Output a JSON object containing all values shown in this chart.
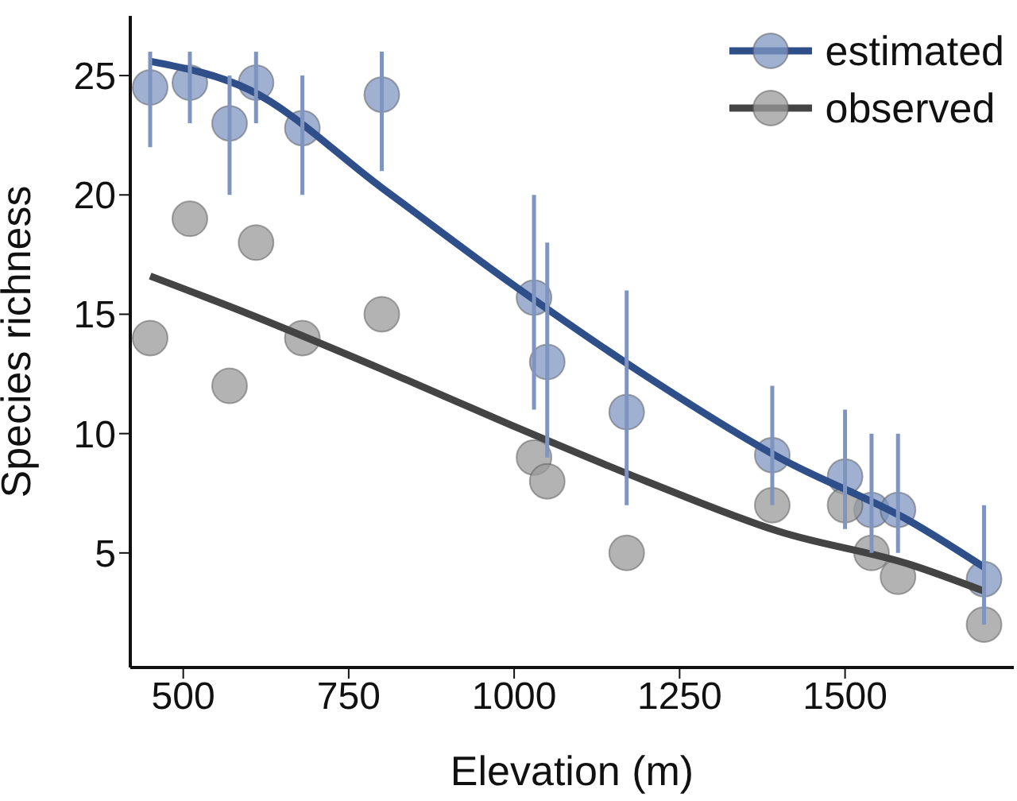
{
  "chart_data": {
    "type": "scatter",
    "xlabel": "Elevation (m)",
    "ylabel": "Species richness",
    "xlim": [
      420,
      1755
    ],
    "xticks": [
      500,
      750,
      1000,
      1250,
      1500
    ],
    "ylim": [
      0.2,
      27.5
    ],
    "yticks": [
      5,
      10,
      15,
      20,
      25
    ],
    "grid": false,
    "legend": "top right",
    "series": [
      {
        "name": "estimated",
        "marker": "circle",
        "color": "#7f95c0",
        "x": [
          450,
          510,
          570,
          610,
          680,
          800,
          1030,
          1050,
          1170,
          1390,
          1500,
          1540,
          1580,
          1710
        ],
        "values": [
          24.5,
          24.7,
          23,
          24.7,
          22.8,
          24.2,
          15.7,
          13,
          10.9,
          9.1,
          8.2,
          6.8,
          6.8,
          3.9
        ],
        "errors": [
          [
            22,
            26
          ],
          [
            23,
            26
          ],
          [
            20,
            25
          ],
          [
            23,
            26
          ],
          [
            20,
            25
          ],
          [
            21,
            26
          ],
          [
            11,
            20
          ],
          [
            9,
            18
          ],
          [
            7,
            16
          ],
          [
            7,
            12
          ],
          [
            6,
            11
          ],
          [
            5,
            10
          ],
          [
            5,
            10
          ],
          [
            2,
            7
          ]
        ]
      },
      {
        "name": "observed",
        "marker": "circle",
        "color": "#9a9a9a",
        "x": [
          450,
          510,
          570,
          610,
          680,
          800,
          1030,
          1050,
          1170,
          1390,
          1500,
          1540,
          1580,
          1710
        ],
        "values": [
          14,
          19,
          12,
          18,
          14,
          15,
          9,
          8,
          5,
          7,
          7,
          5,
          4,
          2
        ]
      },
      {
        "type": "line",
        "marker": "none",
        "color": "#2f4f8a",
        "x": [
          450,
          600,
          800,
          1000,
          1200,
          1400,
          1600,
          1710
        ],
        "values": [
          25.6,
          24.4,
          20.3,
          16.2,
          12.4,
          9,
          6.3,
          4.4
        ]
      },
      {
        "type": "line",
        "marker": "none",
        "color": "#444444",
        "x": [
          450,
          600,
          800,
          1000,
          1200,
          1400,
          1600,
          1710
        ],
        "values": [
          16.6,
          15,
          12.7,
          10.3,
          8,
          5.9,
          4.5,
          3.4
        ]
      }
    ]
  }
}
